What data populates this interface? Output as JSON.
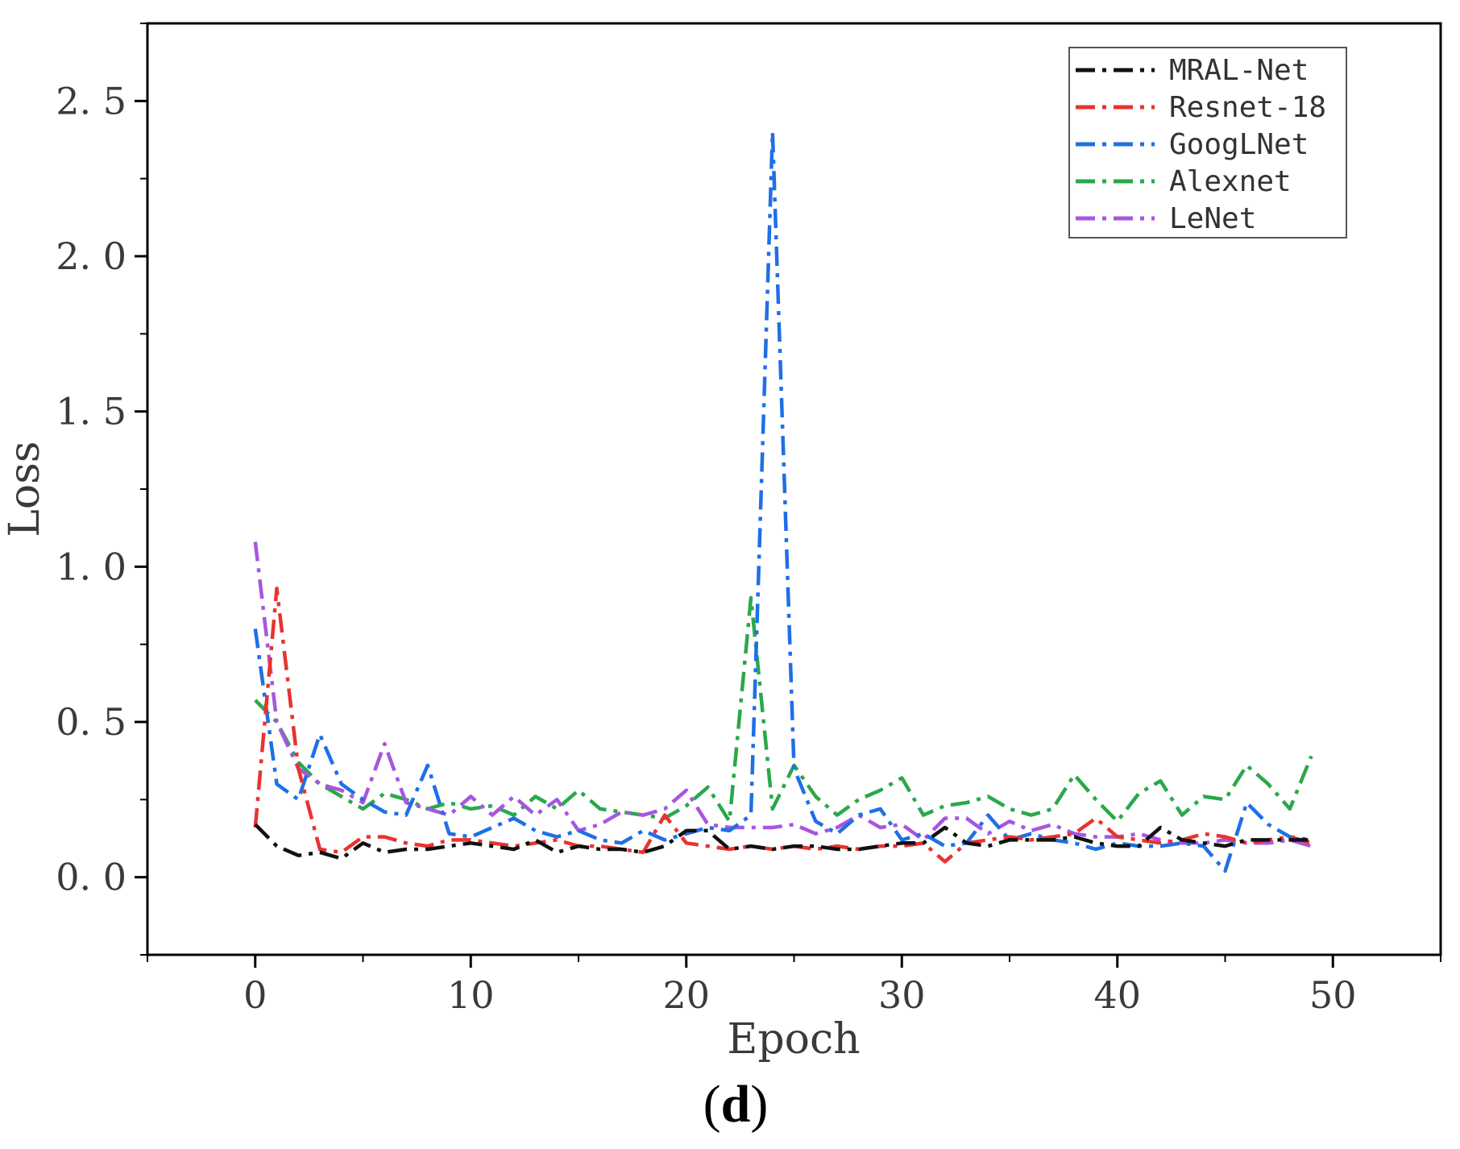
{
  "chart_data": {
    "type": "line",
    "xlabel": "Epoch",
    "ylabel": "Loss",
    "xlim": [
      -5,
      55
    ],
    "ylim": [
      -0.25,
      2.75
    ],
    "xticks": [
      0,
      10,
      20,
      30,
      40,
      50
    ],
    "xtick_labels": [
      "0",
      "10",
      "20",
      "30",
      "40",
      "50"
    ],
    "yticks": [
      0.0,
      0.5,
      1.0,
      1.5,
      2.0,
      2.5
    ],
    "ytick_labels": [
      "0. 0",
      "0. 5",
      "1. 0",
      "1. 5",
      "2. 0",
      "2. 5"
    ],
    "grid": false,
    "legend_position": "top-right",
    "panel_label": {
      "open": "(",
      "letter": "d",
      "close": ")"
    },
    "series": [
      {
        "name": "MRAL-Net",
        "color": "#111111",
        "x": [
          0,
          1,
          2,
          3,
          4,
          5,
          6,
          7,
          8,
          9,
          10,
          11,
          12,
          13,
          14,
          15,
          16,
          17,
          18,
          19,
          20,
          21,
          22,
          23,
          24,
          25,
          26,
          27,
          28,
          29,
          30,
          31,
          32,
          33,
          34,
          35,
          36,
          37,
          38,
          39,
          40,
          41,
          42,
          43,
          44,
          45,
          46,
          47,
          48,
          49
        ],
        "values": [
          0.17,
          0.1,
          0.07,
          0.08,
          0.06,
          0.11,
          0.08,
          0.09,
          0.09,
          0.1,
          0.11,
          0.1,
          0.09,
          0.12,
          0.08,
          0.1,
          0.09,
          0.09,
          0.08,
          0.1,
          0.15,
          0.15,
          0.09,
          0.1,
          0.09,
          0.1,
          0.1,
          0.09,
          0.09,
          0.1,
          0.11,
          0.11,
          0.16,
          0.11,
          0.1,
          0.12,
          0.12,
          0.12,
          0.13,
          0.11,
          0.1,
          0.1,
          0.16,
          0.12,
          0.11,
          0.1,
          0.12,
          0.12,
          0.12,
          0.12
        ]
      },
      {
        "name": "Resnet-18",
        "color": "#e8332f",
        "x": [
          0,
          1,
          2,
          3,
          4,
          5,
          6,
          7,
          8,
          9,
          10,
          11,
          12,
          13,
          14,
          15,
          16,
          17,
          18,
          19,
          20,
          21,
          22,
          23,
          24,
          25,
          26,
          27,
          28,
          29,
          30,
          31,
          32,
          33,
          34,
          35,
          36,
          37,
          38,
          39,
          40,
          41,
          42,
          43,
          44,
          45,
          46,
          47,
          48,
          49
        ],
        "values": [
          0.16,
          0.93,
          0.35,
          0.09,
          0.08,
          0.13,
          0.13,
          0.11,
          0.1,
          0.12,
          0.12,
          0.11,
          0.1,
          0.11,
          0.12,
          0.1,
          0.1,
          0.09,
          0.08,
          0.2,
          0.11,
          0.1,
          0.09,
          0.1,
          0.09,
          0.1,
          0.09,
          0.1,
          0.09,
          0.1,
          0.1,
          0.11,
          0.05,
          0.11,
          0.12,
          0.13,
          0.12,
          0.13,
          0.14,
          0.19,
          0.13,
          0.12,
          0.11,
          0.12,
          0.14,
          0.13,
          0.11,
          0.12,
          0.13,
          0.11
        ]
      },
      {
        "name": "GoogLNet",
        "color": "#1f6fe6",
        "x": [
          0,
          1,
          2,
          3,
          4,
          5,
          6,
          7,
          8,
          9,
          10,
          11,
          12,
          13,
          14,
          15,
          16,
          17,
          18,
          19,
          20,
          21,
          22,
          23,
          24,
          25,
          26,
          27,
          28,
          29,
          30,
          31,
          32,
          33,
          34,
          35,
          36,
          37,
          38,
          39,
          40,
          41,
          42,
          43,
          44,
          45,
          46,
          47,
          48,
          49
        ],
        "values": [
          0.8,
          0.3,
          0.25,
          0.46,
          0.3,
          0.25,
          0.21,
          0.2,
          0.36,
          0.14,
          0.13,
          0.16,
          0.19,
          0.15,
          0.13,
          0.15,
          0.12,
          0.11,
          0.15,
          0.12,
          0.14,
          0.16,
          0.15,
          0.2,
          2.4,
          0.35,
          0.18,
          0.14,
          0.2,
          0.22,
          0.12,
          0.14,
          0.1,
          0.11,
          0.2,
          0.12,
          0.14,
          0.12,
          0.11,
          0.09,
          0.11,
          0.1,
          0.1,
          0.11,
          0.1,
          0.02,
          0.24,
          0.17,
          0.13,
          0.12
        ]
      },
      {
        "name": "Alexnet",
        "color": "#2aa84a",
        "x": [
          0,
          1,
          2,
          3,
          4,
          5,
          6,
          7,
          8,
          9,
          10,
          11,
          12,
          13,
          14,
          15,
          16,
          17,
          18,
          19,
          20,
          21,
          22,
          23,
          24,
          25,
          26,
          27,
          28,
          29,
          30,
          31,
          32,
          33,
          34,
          35,
          36,
          37,
          38,
          39,
          40,
          41,
          42,
          43,
          44,
          45,
          46,
          47,
          48,
          49
        ],
        "values": [
          0.57,
          0.5,
          0.37,
          0.3,
          0.26,
          0.22,
          0.27,
          0.25,
          0.22,
          0.24,
          0.22,
          0.23,
          0.2,
          0.26,
          0.22,
          0.28,
          0.22,
          0.21,
          0.2,
          0.19,
          0.23,
          0.29,
          0.18,
          0.9,
          0.22,
          0.36,
          0.26,
          0.2,
          0.25,
          0.28,
          0.32,
          0.2,
          0.23,
          0.24,
          0.26,
          0.22,
          0.2,
          0.22,
          0.33,
          0.25,
          0.18,
          0.27,
          0.31,
          0.2,
          0.26,
          0.25,
          0.36,
          0.3,
          0.22,
          0.39
        ]
      },
      {
        "name": "LeNet",
        "color": "#a855e0",
        "x": [
          0,
          1,
          2,
          3,
          4,
          5,
          6,
          7,
          8,
          9,
          10,
          11,
          12,
          13,
          14,
          15,
          16,
          17,
          18,
          19,
          20,
          21,
          22,
          23,
          24,
          25,
          26,
          27,
          28,
          29,
          30,
          31,
          32,
          33,
          34,
          35,
          36,
          37,
          38,
          39,
          40,
          41,
          42,
          43,
          44,
          45,
          46,
          47,
          48,
          49
        ],
        "values": [
          1.08,
          0.5,
          0.35,
          0.3,
          0.28,
          0.24,
          0.43,
          0.24,
          0.22,
          0.2,
          0.26,
          0.2,
          0.26,
          0.2,
          0.25,
          0.15,
          0.17,
          0.21,
          0.2,
          0.22,
          0.28,
          0.17,
          0.16,
          0.16,
          0.16,
          0.17,
          0.14,
          0.16,
          0.2,
          0.16,
          0.17,
          0.12,
          0.19,
          0.19,
          0.14,
          0.18,
          0.15,
          0.17,
          0.14,
          0.13,
          0.13,
          0.14,
          0.12,
          0.11,
          0.11,
          0.12,
          0.11,
          0.11,
          0.12,
          0.1
        ]
      }
    ]
  }
}
